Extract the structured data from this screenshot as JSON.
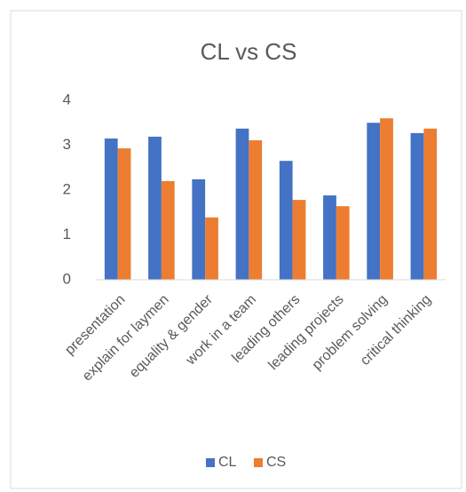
{
  "chart_data": {
    "type": "bar",
    "title": "CL vs CS",
    "categories": [
      "presentation",
      "explain for laymen",
      "equality & gender",
      "work in a team",
      "leading others",
      "leading projects",
      "problem solving",
      "critical thinking"
    ],
    "series": [
      {
        "name": "CL",
        "color": "#4472c4",
        "values": [
          3.15,
          3.19,
          2.24,
          3.37,
          2.65,
          1.88,
          3.5,
          3.27
        ]
      },
      {
        "name": "CS",
        "color": "#ed7d31",
        "values": [
          2.93,
          2.2,
          1.39,
          3.11,
          1.78,
          1.64,
          3.6,
          3.37
        ]
      }
    ],
    "ylim": [
      0,
      4
    ],
    "yticks": [
      0,
      1,
      2,
      3,
      4
    ],
    "grid": false,
    "legend": "bottom"
  }
}
